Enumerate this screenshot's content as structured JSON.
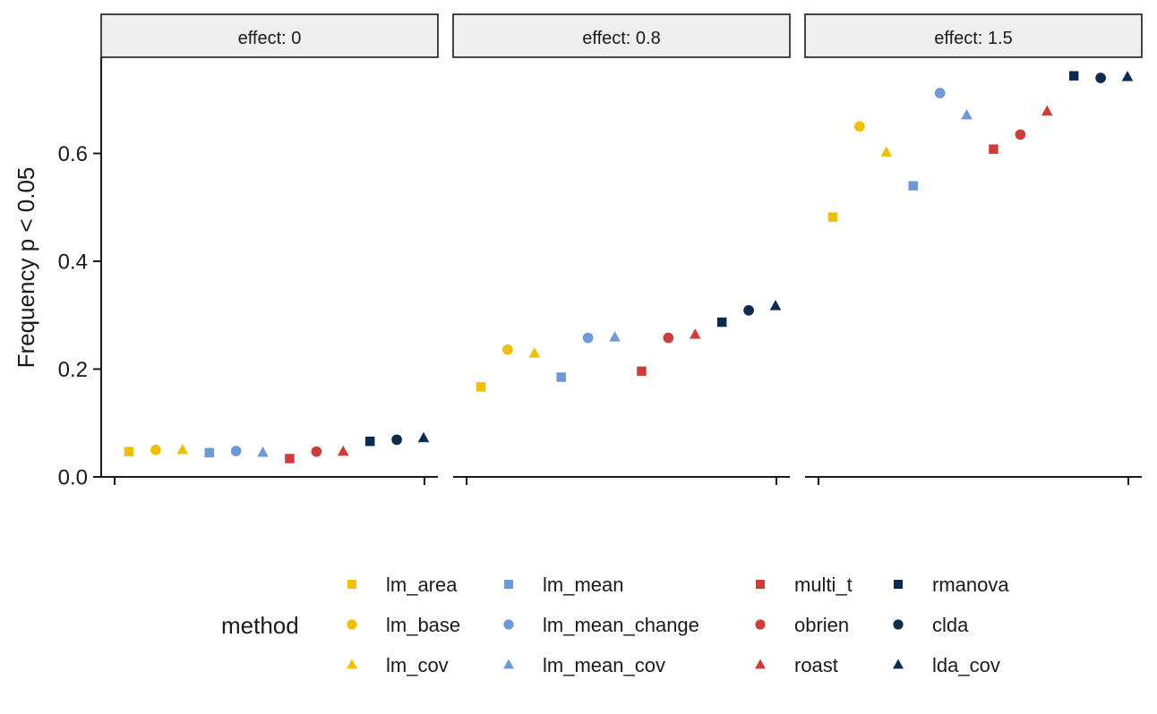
{
  "chart_data": {
    "type": "scatter",
    "ylabel": "Frequency p < 0.05",
    "xlabel": "",
    "ylim": [
      0.0,
      0.76
    ],
    "yticks": [
      0.0,
      0.2,
      0.4,
      0.6
    ],
    "ytick_labels": [
      "0.0",
      "0.2",
      "0.4",
      "0.6"
    ],
    "grid": false,
    "legend_title": "method",
    "legend_position": "bottom",
    "methods": [
      {
        "name": "lm_area",
        "color": "#EFC000",
        "shape": "square"
      },
      {
        "name": "lm_base",
        "color": "#EFC000",
        "shape": "circle"
      },
      {
        "name": "lm_cov",
        "color": "#EFC000",
        "shape": "triangle"
      },
      {
        "name": "lm_mean",
        "color": "#6F99D6",
        "shape": "square"
      },
      {
        "name": "lm_mean_change",
        "color": "#6F99D6",
        "shape": "circle"
      },
      {
        "name": "lm_mean_cov",
        "color": "#6F99D6",
        "shape": "triangle"
      },
      {
        "name": "multi_t",
        "color": "#CD3D3A",
        "shape": "square"
      },
      {
        "name": "obrien",
        "color": "#CD3D3A",
        "shape": "circle"
      },
      {
        "name": "roast",
        "color": "#CD3D3A",
        "shape": "triangle"
      },
      {
        "name": "rmanova",
        "color": "#0D2A4F",
        "shape": "square"
      },
      {
        "name": "clda",
        "color": "#0D2A4F",
        "shape": "circle"
      },
      {
        "name": "lda_cov",
        "color": "#0D2A4F",
        "shape": "triangle"
      }
    ],
    "panels": [
      {
        "label": "effect: 0",
        "values": [
          0.047,
          0.05,
          0.05,
          0.045,
          0.048,
          0.045,
          0.034,
          0.047,
          0.047,
          0.066,
          0.069,
          0.072
        ]
      },
      {
        "label": "effect: 0.8",
        "values": [
          0.167,
          0.236,
          0.229,
          0.185,
          0.258,
          0.259,
          0.196,
          0.258,
          0.264,
          0.287,
          0.309,
          0.317
        ]
      },
      {
        "label": "effect: 1.5",
        "values": [
          0.482,
          0.65,
          0.602,
          0.54,
          0.712,
          0.671,
          0.608,
          0.635,
          0.678,
          0.744,
          0.74,
          0.742
        ]
      }
    ]
  }
}
